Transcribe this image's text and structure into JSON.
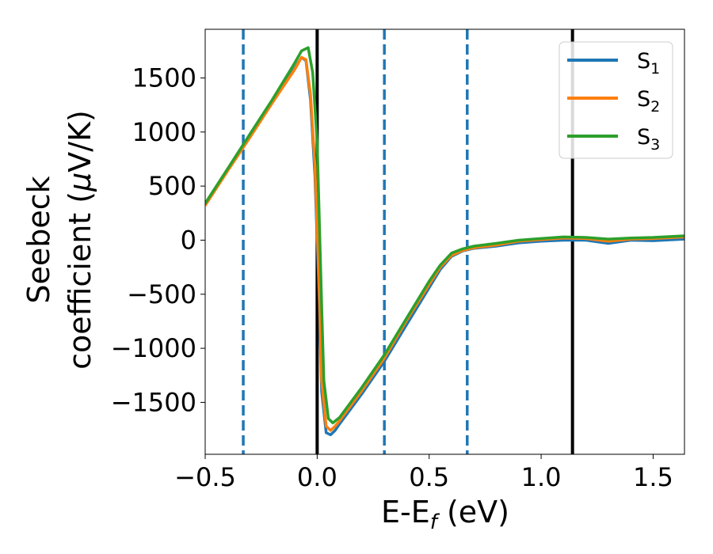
{
  "chart_data": {
    "type": "line",
    "title": "",
    "xlabel": "E-E",
    "xlabel_sub": "f",
    "xlabel_unit": " (eV)",
    "ylabel_line1": "Seebeck",
    "ylabel_line2": "coefficient  (",
    "ylabel_mu": "μ",
    "ylabel_unit": "V/K)",
    "xlim": [
      -0.5,
      1.64
    ],
    "ylim": [
      -1980,
      1950
    ],
    "xticks": [
      -0.5,
      0.0,
      0.5,
      1.0,
      1.5
    ],
    "xtick_labels": [
      "−0.5",
      "0.0",
      "0.5",
      "1.0",
      "1.5"
    ],
    "yticks": [
      -1500,
      -1000,
      -500,
      0,
      500,
      1000,
      1500
    ],
    "ytick_labels": [
      "−1500",
      "−1000",
      "−500",
      "0",
      "500",
      "1000",
      "1500"
    ],
    "grid": false,
    "legend_position": "top-right",
    "vlines": [
      {
        "x": -0.33,
        "style": "dashed",
        "color": "#1f77b4"
      },
      {
        "x": 0.0,
        "style": "solid",
        "color": "#000000"
      },
      {
        "x": 0.3,
        "style": "dashed",
        "color": "#1f77b4"
      },
      {
        "x": 0.67,
        "style": "dashed",
        "color": "#1f77b4"
      },
      {
        "x": 1.14,
        "style": "solid",
        "color": "#000000"
      }
    ],
    "series": [
      {
        "name": "S",
        "sub": "1",
        "color": "#1f77b4",
        "points": [
          [
            -0.5,
            330
          ],
          [
            -0.4,
            650
          ],
          [
            -0.3,
            960
          ],
          [
            -0.2,
            1280
          ],
          [
            -0.1,
            1590
          ],
          [
            -0.07,
            1690
          ],
          [
            -0.05,
            1660
          ],
          [
            -0.03,
            1300
          ],
          [
            -0.01,
            600
          ],
          [
            0.01,
            -600
          ],
          [
            0.02,
            -1400
          ],
          [
            0.04,
            -1780
          ],
          [
            0.06,
            -1800
          ],
          [
            0.08,
            -1760
          ],
          [
            0.1,
            -1700
          ],
          [
            0.2,
            -1420
          ],
          [
            0.3,
            -1120
          ],
          [
            0.4,
            -780
          ],
          [
            0.5,
            -440
          ],
          [
            0.55,
            -270
          ],
          [
            0.6,
            -150
          ],
          [
            0.65,
            -100
          ],
          [
            0.7,
            -75
          ],
          [
            0.8,
            -55
          ],
          [
            0.9,
            -25
          ],
          [
            1.0,
            -10
          ],
          [
            1.1,
            0
          ],
          [
            1.2,
            0
          ],
          [
            1.3,
            -30
          ],
          [
            1.4,
            0
          ],
          [
            1.5,
            -5
          ],
          [
            1.64,
            10
          ]
        ]
      },
      {
        "name": "S",
        "sub": "2",
        "color": "#ff7f0e",
        "points": [
          [
            -0.5,
            320
          ],
          [
            -0.4,
            640
          ],
          [
            -0.3,
            950
          ],
          [
            -0.2,
            1270
          ],
          [
            -0.1,
            1580
          ],
          [
            -0.07,
            1690
          ],
          [
            -0.05,
            1670
          ],
          [
            -0.03,
            1350
          ],
          [
            -0.01,
            700
          ],
          [
            0.01,
            -500
          ],
          [
            0.02,
            -1300
          ],
          [
            0.04,
            -1720
          ],
          [
            0.06,
            -1760
          ],
          [
            0.08,
            -1720
          ],
          [
            0.1,
            -1670
          ],
          [
            0.2,
            -1390
          ],
          [
            0.3,
            -1090
          ],
          [
            0.4,
            -740
          ],
          [
            0.5,
            -410
          ],
          [
            0.55,
            -250
          ],
          [
            0.6,
            -140
          ],
          [
            0.65,
            -95
          ],
          [
            0.7,
            -70
          ],
          [
            0.8,
            -45
          ],
          [
            0.9,
            -10
          ],
          [
            1.0,
            5
          ],
          [
            1.1,
            20
          ],
          [
            1.2,
            15
          ],
          [
            1.3,
            -10
          ],
          [
            1.4,
            10
          ],
          [
            1.5,
            15
          ],
          [
            1.64,
            30
          ]
        ]
      },
      {
        "name": "S",
        "sub": "3",
        "color": "#2ca02c",
        "points": [
          [
            -0.5,
            340
          ],
          [
            -0.4,
            660
          ],
          [
            -0.3,
            980
          ],
          [
            -0.2,
            1300
          ],
          [
            -0.1,
            1640
          ],
          [
            -0.07,
            1750
          ],
          [
            -0.04,
            1780
          ],
          [
            -0.02,
            1550
          ],
          [
            0.0,
            900
          ],
          [
            0.02,
            -600
          ],
          [
            0.03,
            -1300
          ],
          [
            0.05,
            -1650
          ],
          [
            0.07,
            -1690
          ],
          [
            0.1,
            -1640
          ],
          [
            0.2,
            -1360
          ],
          [
            0.3,
            -1060
          ],
          [
            0.4,
            -720
          ],
          [
            0.5,
            -380
          ],
          [
            0.55,
            -230
          ],
          [
            0.6,
            -120
          ],
          [
            0.65,
            -80
          ],
          [
            0.7,
            -55
          ],
          [
            0.8,
            -30
          ],
          [
            0.9,
            0
          ],
          [
            1.0,
            15
          ],
          [
            1.1,
            30
          ],
          [
            1.2,
            25
          ],
          [
            1.3,
            10
          ],
          [
            1.4,
            20
          ],
          [
            1.5,
            25
          ],
          [
            1.64,
            40
          ]
        ]
      }
    ]
  }
}
